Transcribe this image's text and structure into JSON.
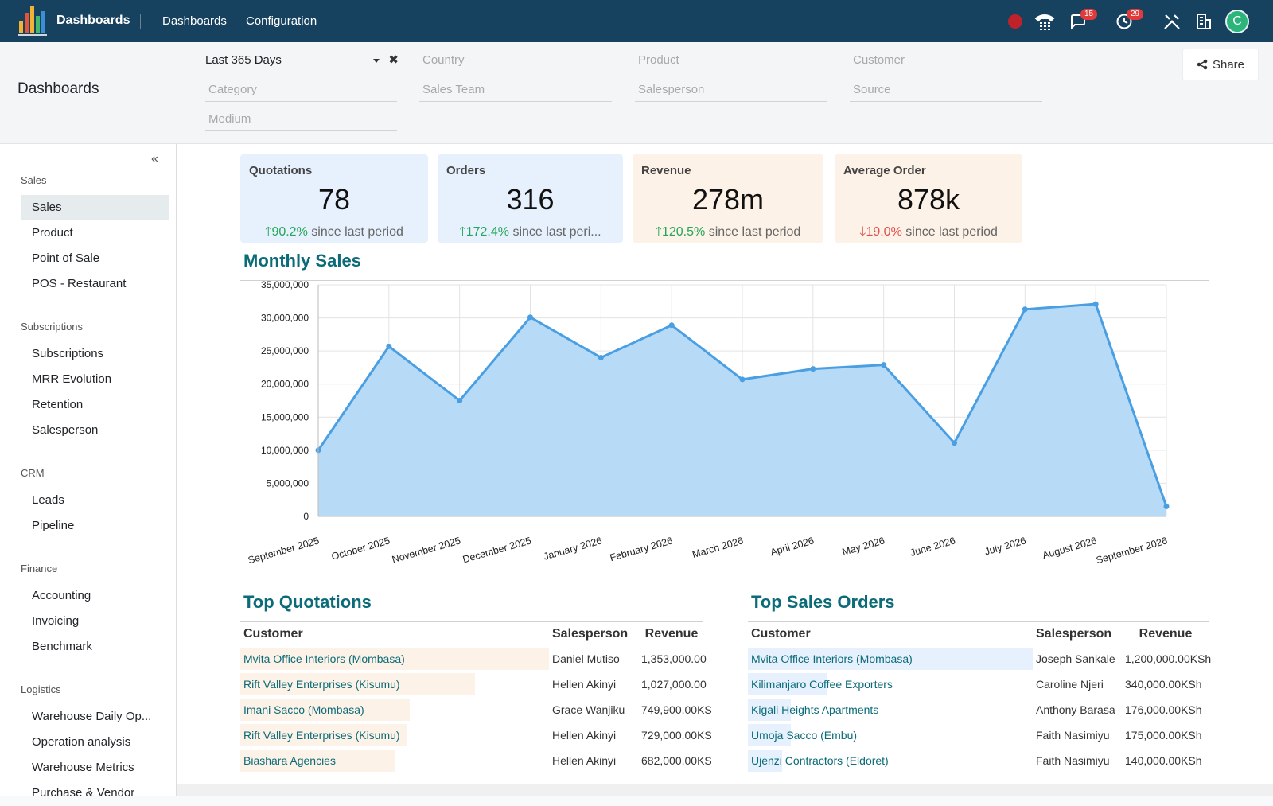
{
  "navbar": {
    "app_name": "Dashboards",
    "links": [
      "Dashboards",
      "Configuration"
    ],
    "messages_count": "15",
    "activities_count": "29",
    "avatar_initial": "C",
    "icons": [
      "recording-dot-icon",
      "phone-icon",
      "chat-icon",
      "clock-icon",
      "tools-icon",
      "building-icon"
    ]
  },
  "control": {
    "page_title": "Dashboards",
    "share_label": "Share",
    "filters": {
      "period": "Last 365 Days",
      "country": "Country",
      "product": "Product",
      "customer": "Customer",
      "category": "Category",
      "sales_team": "Sales Team",
      "salesperson": "Salesperson",
      "source": "Source",
      "medium": "Medium"
    }
  },
  "sidebar": {
    "sections": [
      {
        "title": "Sales",
        "items": [
          "Sales",
          "Product",
          "Point of Sale",
          "POS - Restaurant"
        ]
      },
      {
        "title": "Subscriptions",
        "items": [
          "Subscriptions",
          "MRR Evolution",
          "Retention",
          "Salesperson"
        ]
      },
      {
        "title": "CRM",
        "items": [
          "Leads",
          "Pipeline"
        ]
      },
      {
        "title": "Finance",
        "items": [
          "Accounting",
          "Invoicing",
          "Benchmark"
        ]
      },
      {
        "title": "Logistics",
        "items": [
          "Warehouse Daily Op...",
          "Operation analysis",
          "Warehouse Metrics",
          "Purchase & Vendor"
        ]
      }
    ],
    "active_item": "Sales"
  },
  "kpis": [
    {
      "label": "Quotations",
      "value": "78",
      "delta": "90.2%",
      "delta_dir": "up",
      "suffix": "since last period"
    },
    {
      "label": "Orders",
      "value": "316",
      "delta": "172.4%",
      "delta_dir": "up",
      "suffix": "since last peri..."
    },
    {
      "label": "Revenue",
      "value": "278m",
      "delta": "120.5%",
      "delta_dir": "up",
      "suffix": "since last period"
    },
    {
      "label": "Average Order",
      "value": "878k",
      "delta": "19.0%",
      "delta_dir": "down",
      "suffix": "since last period"
    }
  ],
  "monthly_sales_title": "Monthly Sales",
  "chart_data": {
    "type": "area",
    "title": "",
    "xlabel": "",
    "ylabel": "",
    "x": [
      "September 2025",
      "October 2025",
      "November 2025",
      "December 2025",
      "January 2026",
      "February 2026",
      "March 2026",
      "April 2026",
      "May 2026",
      "June 2026",
      "July 2026",
      "August 2026",
      "September 2026"
    ],
    "series": [
      {
        "values": [
          10000000,
          25700000,
          17500000,
          30100000,
          24000000,
          28900000,
          20700000,
          22300000,
          22900000,
          11100000,
          31300000,
          32100000,
          1500000
        ]
      }
    ],
    "ylim": [
      0,
      35000000
    ],
    "yticks": [
      "0",
      "5,000,000",
      "10,000,000",
      "15,000,000",
      "20,000,000",
      "25,000,000",
      "30,000,000",
      "35,000,000"
    ],
    "grid": true,
    "color": "#4a9fe3",
    "fill": "#b7dbf7"
  },
  "top_quotations": {
    "title": "Top Quotations",
    "headers": [
      "Customer",
      "Salesperson",
      "Revenue"
    ],
    "rows": [
      {
        "customer": "Mvita Office Interiors (Mombasa)",
        "salesperson": "Daniel Mutiso",
        "revenue": "1,353,000.00",
        "share": 1.0
      },
      {
        "customer": "Rift Valley Enterprises (Kisumu)",
        "salesperson": "Hellen Akinyi",
        "revenue": "1,027,000.00",
        "share": 0.76
      },
      {
        "customer": "Imani Sacco (Mombasa)",
        "salesperson": "Grace Wanjiku",
        "revenue": "749,900.00KS",
        "share": 0.55
      },
      {
        "customer": "Rift Valley Enterprises (Kisumu)",
        "salesperson": "Hellen Akinyi",
        "revenue": "729,000.00KS",
        "share": 0.54
      },
      {
        "customer": "Biashara Agencies",
        "salesperson": "Hellen Akinyi",
        "revenue": "682,000.00KS",
        "share": 0.5
      }
    ]
  },
  "top_orders": {
    "title": "Top Sales Orders",
    "headers": [
      "Customer",
      "Salesperson",
      "Revenue"
    ],
    "rows": [
      {
        "customer": "Mvita Office Interiors (Mombasa)",
        "salesperson": "Joseph Sankale",
        "revenue": "1,200,000.00KSh",
        "share": 1.0
      },
      {
        "customer": "Kilimanjaro Coffee Exporters",
        "salesperson": "Caroline Njeri",
        "revenue": "340,000.00KSh",
        "share": 0.28
      },
      {
        "customer": "Kigali Heights Apartments",
        "salesperson": "Anthony Barasa",
        "revenue": "176,000.00KSh",
        "share": 0.15
      },
      {
        "customer": "Umoja Sacco (Embu)",
        "salesperson": "Faith Nasimiyu",
        "revenue": "175,000.00KSh",
        "share": 0.15
      },
      {
        "customer": "Ujenzi Contractors (Eldoret)",
        "salesperson": "Faith Nasimiyu",
        "revenue": "140,000.00KSh",
        "share": 0.12
      }
    ]
  }
}
